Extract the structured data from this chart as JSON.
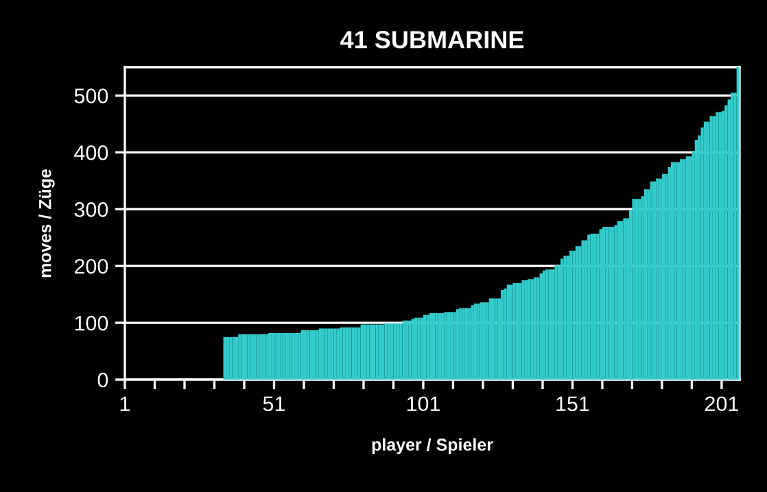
{
  "chart_data": {
    "type": "bar",
    "title": "41 SUBMARINE",
    "xlabel": "player / Spieler",
    "ylabel": "moves / Züge",
    "x": [
      1,
      2,
      3,
      4,
      5,
      6,
      7,
      8,
      9,
      10,
      11,
      12,
      13,
      14,
      15,
      16,
      17,
      18,
      19,
      20,
      21,
      22,
      23,
      24,
      25,
      26,
      27,
      28,
      29,
      30,
      31,
      32,
      33,
      34,
      35,
      36,
      37,
      38,
      39,
      40,
      41,
      42,
      43,
      44,
      45,
      46,
      47,
      48,
      49,
      50,
      51,
      52,
      53,
      54,
      55,
      56,
      57,
      58,
      59,
      60,
      61,
      62,
      63,
      64,
      65,
      66,
      67,
      68,
      69,
      70,
      71,
      72,
      73,
      74,
      75,
      76,
      77,
      78,
      79,
      80,
      81,
      82,
      83,
      84,
      85,
      86,
      87,
      88,
      89,
      90,
      91,
      92,
      93,
      94,
      95,
      96,
      97,
      98,
      99,
      100,
      101,
      102,
      103,
      104,
      105,
      106,
      107,
      108,
      109,
      110,
      111,
      112,
      113,
      114,
      115,
      116,
      117,
      118,
      119,
      120,
      121,
      122,
      123,
      124,
      125,
      126,
      127,
      128,
      129,
      130,
      131,
      132,
      133,
      134,
      135,
      136,
      137,
      138,
      139,
      140,
      141,
      142,
      143,
      144,
      145,
      146,
      147,
      148,
      149,
      150,
      151,
      152,
      153,
      154,
      155,
      156,
      157,
      158,
      159,
      160,
      161,
      162,
      163,
      164,
      165,
      166,
      167,
      168,
      169,
      170,
      171,
      172,
      173,
      174,
      175,
      176,
      177,
      178,
      179,
      180,
      181,
      182,
      183,
      184,
      185,
      186,
      187,
      188,
      189,
      190,
      191,
      192,
      193,
      194,
      195,
      196,
      197,
      198,
      199,
      200,
      201,
      202,
      203,
      204,
      205,
      206
    ],
    "values": [
      0,
      0,
      0,
      0,
      0,
      0,
      0,
      0,
      0,
      0,
      0,
      0,
      0,
      0,
      0,
      0,
      0,
      0,
      0,
      0,
      0,
      0,
      0,
      0,
      0,
      0,
      0,
      0,
      0,
      0,
      0,
      0,
      0,
      75,
      75,
      75,
      75,
      75,
      80,
      80,
      80,
      80,
      80,
      80,
      80,
      80,
      80,
      80,
      82,
      82,
      82,
      82,
      82,
      82,
      82,
      82,
      82,
      82,
      82,
      87,
      87,
      87,
      87,
      87,
      87,
      90,
      90,
      90,
      90,
      90,
      90,
      90,
      92,
      92,
      92,
      92,
      92,
      92,
      92,
      97,
      97,
      97,
      97,
      97,
      97,
      97,
      97,
      99,
      99,
      99,
      99,
      99,
      99,
      104,
      104,
      104,
      107,
      109,
      109,
      109,
      114,
      114,
      117,
      117,
      117,
      117,
      117,
      119,
      119,
      119,
      119,
      124,
      126,
      126,
      126,
      126,
      131,
      134,
      134,
      136,
      136,
      136,
      143,
      143,
      143,
      143,
      158,
      160,
      167,
      167,
      170,
      170,
      170,
      175,
      175,
      177,
      177,
      180,
      180,
      187,
      192,
      194,
      194,
      194,
      201,
      201,
      213,
      218,
      218,
      227,
      227,
      235,
      235,
      245,
      245,
      255,
      257,
      257,
      257,
      265,
      269,
      269,
      269,
      269,
      272,
      279,
      279,
      284,
      284,
      299,
      318,
      318,
      318,
      323,
      335,
      335,
      349,
      349,
      354,
      354,
      362,
      362,
      374,
      383,
      383,
      383,
      388,
      388,
      393,
      393,
      403,
      422,
      430,
      444,
      454,
      454,
      464,
      464,
      471,
      471,
      473,
      483,
      493,
      505,
      505,
      550
    ],
    "color": "#33cccc",
    "xlim": [
      1,
      207
    ],
    "xticks": [
      1,
      {
        "value": 11,
        "label": null
      },
      {
        "value": 21,
        "label": null
      },
      {
        "value": 31,
        "label": null
      },
      {
        "value": 41,
        "label": null
      },
      51,
      {
        "value": 61,
        "label": null
      },
      {
        "value": 71,
        "label": null
      },
      {
        "value": 81,
        "label": null
      },
      {
        "value": 91,
        "label": null
      },
      101,
      {
        "value": 111,
        "label": null
      },
      {
        "value": 121,
        "label": null
      },
      {
        "value": 131,
        "label": null
      },
      {
        "value": 141,
        "label": null
      },
      151,
      {
        "value": 161,
        "label": null
      },
      {
        "value": 171,
        "label": null
      },
      {
        "value": 181,
        "label": null
      },
      {
        "value": 191,
        "label": null
      },
      201
    ],
    "ylim": [
      0,
      550
    ],
    "yticks": [
      0,
      100,
      200,
      300,
      400,
      500
    ],
    "grid": "y"
  }
}
